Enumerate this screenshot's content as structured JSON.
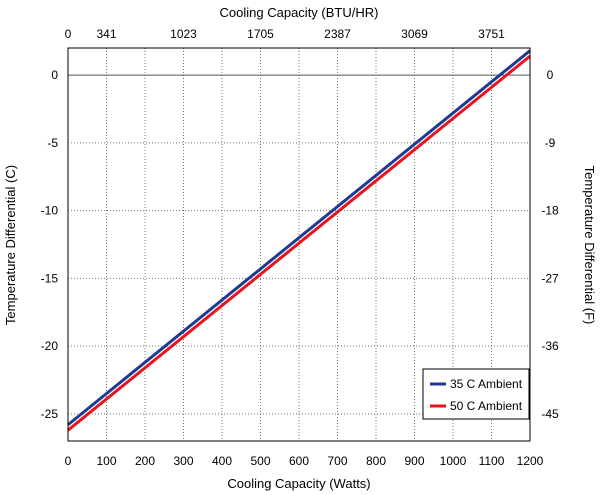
{
  "chart_data": {
    "type": "line",
    "xlabel": "Cooling Capacity (Watts)",
    "x2label": "Cooling Capacity (BTU/HR)",
    "ylabel": "Temperature Differential (C)",
    "y2label": "Temperature Differential (F)",
    "xlim": [
      0,
      1200
    ],
    "ylim": [
      -27,
      2
    ],
    "grid": true,
    "legend_position": "bottom-right",
    "x_ticks": [
      0,
      100,
      200,
      300,
      400,
      500,
      600,
      700,
      800,
      900,
      1000,
      1100,
      1200
    ],
    "x_tick_labels": [
      "0",
      "100",
      "200",
      "300",
      "400",
      "500",
      "600",
      "700",
      "800",
      "900",
      "1000",
      "1100",
      "1200"
    ],
    "x2_ticks": [
      0,
      100,
      300,
      500,
      700,
      900,
      1100
    ],
    "x2_tick_labels": [
      "0",
      "341",
      "1023",
      "1705",
      "2387",
      "3069",
      "3751"
    ],
    "y_ticks": [
      0,
      -5,
      -10,
      -15,
      -20,
      -25
    ],
    "y_tick_labels": [
      "0",
      "-5",
      "-10",
      "-15",
      "-20",
      "-25"
    ],
    "y2_ticks": [
      0,
      -5,
      -10,
      -15,
      -20,
      -25
    ],
    "y2_tick_labels": [
      "0",
      "-9",
      "-18",
      "-27",
      "-36",
      "-45"
    ],
    "reference_line_y": 0,
    "series": [
      {
        "name": "35 C Ambient",
        "color": "#1f3a93",
        "x": [
          0,
          1200
        ],
        "y": [
          -25.8,
          1.8
        ]
      },
      {
        "name": "50 C Ambient",
        "color": "#e8141b",
        "x": [
          0,
          1200
        ],
        "y": [
          -26.2,
          1.4
        ]
      }
    ]
  }
}
